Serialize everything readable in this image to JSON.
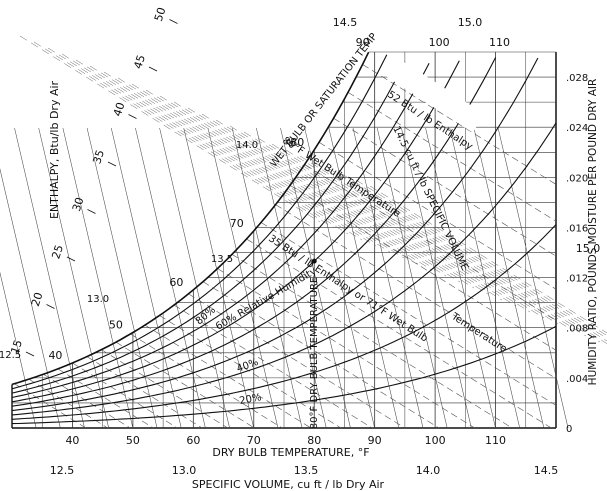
{
  "labels": {
    "enthalpy_axis": "ENTHALPY, Btu/lb Dry Air",
    "wet_bulb_axis": "WET BULB OR SATURATION TEMP",
    "humidity_axis": "HUMIDITY RATIO, POUNDS MOISTURE PER POUND DRY AIR",
    "dry_bulb_axis": "DRY BULB TEMPERATURE, °F",
    "specific_volume_axis": "SPECIFIC VOLUME, cu ft / lb Dry Air",
    "annot_enthalpy_52": "52 Btu / lb Enthalpy",
    "annot_wb_80": "80°F Wet Bulb Temperature",
    "annot_sv_145": "14.5 cu ft / lb SPECIFIC VOLUME",
    "annot_enthalpy_35": "35 Btu / lb Enthalpy or 71°F Wet Bulb",
    "annot_temperature": "Temperature",
    "annot_rh_60": "60% Relative Humidity",
    "annot_rh_80": "80%",
    "annot_rh_40": "40%",
    "annot_rh_20": "20%",
    "annot_db_80": "80°F DRY BULB TEMPERATURE"
  },
  "chart_data": {
    "type": "psychrometric",
    "dry_bulb_ticks": [
      "40",
      "50",
      "60",
      "70",
      "80",
      "90",
      "100",
      "110"
    ],
    "humidity_ticks": [
      "0",
      ".004",
      ".008",
      ".012",
      ".016",
      ".020",
      ".024",
      ".028"
    ],
    "enthalpy_ticks": [
      "15",
      "20",
      "25",
      "30",
      "35",
      "40",
      "45",
      "50"
    ],
    "wet_bulb_ticks": [
      "40",
      "50",
      "60",
      "70",
      "80",
      "90",
      "100",
      "110"
    ],
    "wet_bulb_scale_labels": [
      "40",
      "50",
      "60",
      "70",
      "80",
      "90"
    ],
    "wet_bulb_top_labels": [
      "100",
      "110"
    ],
    "specific_volume_bottom": [
      "12.5",
      "13.0",
      "13.5",
      "14.0",
      "14.5"
    ],
    "specific_volume_top": [
      "14.5",
      "15.0"
    ],
    "specific_volume_right": "15.0",
    "specific_volume_on_curve": [
      "12.5",
      "13.0",
      "13.5",
      "14.0"
    ],
    "relative_humidity_curves": [
      10,
      20,
      30,
      40,
      50,
      60,
      70,
      80,
      90,
      100
    ],
    "x_range": [
      30,
      120
    ],
    "y_range": [
      0,
      0.03
    ],
    "annotated_point": {
      "dry_bulb": 80,
      "relative_humidity": 60
    },
    "grid": true
  }
}
